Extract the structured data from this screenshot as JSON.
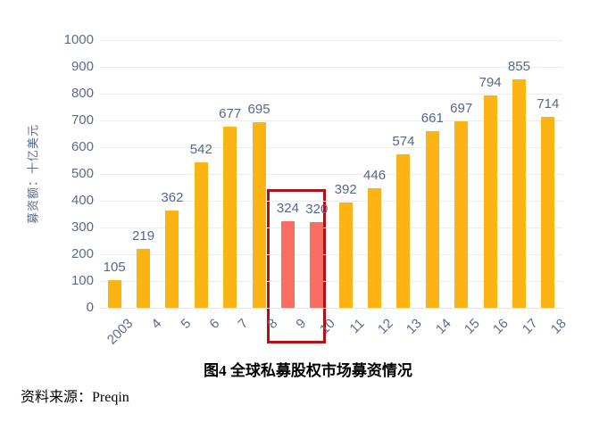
{
  "chart_data": {
    "type": "bar",
    "title": "图4  全球私募股权市场募资情况",
    "ylabel": "募资额：十亿美元",
    "xlabel": "",
    "categories": [
      "2003",
      "4",
      "5",
      "6",
      "7",
      "8",
      "9",
      "10",
      "11",
      "12",
      "13",
      "14",
      "15",
      "16",
      "17",
      "18"
    ],
    "values": [
      105,
      219,
      362,
      542,
      677,
      695,
      324,
      320,
      392,
      446,
      574,
      661,
      697,
      794,
      855,
      714
    ],
    "ylim": [
      0,
      1000
    ],
    "ytick_step": 100,
    "grid": true,
    "legend": false,
    "highlight_indices": [
      6,
      7
    ],
    "colors": {
      "bar": "#fcb415",
      "highlight_bar": "#fa6e62",
      "highlight_box": "#b01116",
      "axis_text": "#5a6b8f",
      "gridline": "#e7edf3"
    }
  },
  "source": "资料来源：Preqin"
}
